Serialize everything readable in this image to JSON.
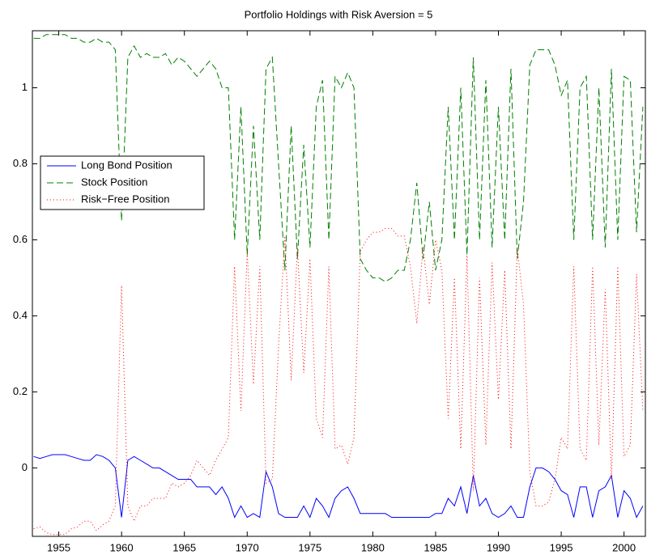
{
  "chart_data": {
    "type": "line",
    "title": "Portfolio Holdings with Risk Aversion = 5",
    "x": [
      1953,
      1953.5,
      1954,
      1954.5,
      1955,
      1955.5,
      1956,
      1956.5,
      1957,
      1957.5,
      1958,
      1958.5,
      1959,
      1959.5,
      1960,
      1960.5,
      1961,
      1961.5,
      1962,
      1962.5,
      1963,
      1963.5,
      1964,
      1964.5,
      1965,
      1965.5,
      1966,
      1966.5,
      1967,
      1967.5,
      1968,
      1968.5,
      1969,
      1969.5,
      1970,
      1970.5,
      1971,
      1971.5,
      1972,
      1972.5,
      1973,
      1973.5,
      1974,
      1974.5,
      1975,
      1975.5,
      1976,
      1976.5,
      1977,
      1977.5,
      1978,
      1978.5,
      1979,
      1979.5,
      1980,
      1980.5,
      1981,
      1981.5,
      1982,
      1982.5,
      1983,
      1983.5,
      1984,
      1984.5,
      1985,
      1985.5,
      1986,
      1986.5,
      1987,
      1987.5,
      1988,
      1988.5,
      1989,
      1989.5,
      1990,
      1990.5,
      1991,
      1991.5,
      1992,
      1992.5,
      1993,
      1993.5,
      1994,
      1994.5,
      1995,
      1995.5,
      1996,
      1996.5,
      1997,
      1997.5,
      1998,
      1998.5,
      1999,
      1999.5,
      2000,
      2000.5,
      2001,
      2001.5
    ],
    "series": [
      {
        "name": "Long Bond Position",
        "color": "#0000ff",
        "dash": "solid",
        "values": [
          0.03,
          0.025,
          0.03,
          0.035,
          0.035,
          0.035,
          0.03,
          0.025,
          0.02,
          0.02,
          0.035,
          0.03,
          0.02,
          0.0,
          -0.13,
          0.02,
          0.03,
          0.02,
          0.01,
          0.0,
          0.0,
          -0.01,
          -0.02,
          -0.03,
          -0.03,
          -0.03,
          -0.05,
          -0.05,
          -0.05,
          -0.07,
          -0.05,
          -0.08,
          -0.13,
          -0.1,
          -0.13,
          -0.12,
          -0.13,
          -0.01,
          -0.05,
          -0.12,
          -0.13,
          -0.13,
          -0.13,
          -0.1,
          -0.13,
          -0.08,
          -0.1,
          -0.13,
          -0.08,
          -0.06,
          -0.05,
          -0.08,
          -0.12,
          -0.12,
          -0.12,
          -0.12,
          -0.12,
          -0.13,
          -0.13,
          -0.13,
          -0.13,
          -0.13,
          -0.13,
          -0.13,
          -0.12,
          -0.12,
          -0.08,
          -0.1,
          -0.05,
          -0.12,
          -0.02,
          -0.1,
          -0.08,
          -0.12,
          -0.13,
          -0.12,
          -0.1,
          -0.13,
          -0.13,
          -0.05,
          0.0,
          0.0,
          -0.01,
          -0.03,
          -0.06,
          -0.07,
          -0.13,
          -0.05,
          -0.05,
          -0.13,
          -0.06,
          -0.05,
          -0.02,
          -0.13,
          -0.06,
          -0.08,
          -0.13,
          -0.1
        ]
      },
      {
        "name": "Stock Position",
        "color": "#007f00",
        "dash": "dashed",
        "values": [
          1.13,
          1.13,
          1.14,
          1.14,
          1.14,
          1.14,
          1.13,
          1.13,
          1.12,
          1.12,
          1.13,
          1.12,
          1.12,
          1.1,
          0.65,
          1.08,
          1.11,
          1.08,
          1.09,
          1.08,
          1.08,
          1.09,
          1.06,
          1.08,
          1.07,
          1.05,
          1.03,
          1.05,
          1.07,
          1.05,
          1.0,
          1.0,
          0.6,
          0.95,
          0.56,
          0.9,
          0.6,
          1.05,
          1.08,
          0.8,
          0.52,
          0.9,
          0.55,
          0.85,
          0.58,
          0.95,
          1.02,
          0.6,
          1.03,
          1.0,
          1.04,
          1.0,
          0.55,
          0.52,
          0.5,
          0.5,
          0.49,
          0.5,
          0.52,
          0.52,
          0.6,
          0.75,
          0.55,
          0.7,
          0.52,
          0.6,
          0.95,
          0.6,
          1.0,
          0.56,
          1.08,
          0.6,
          1.02,
          0.58,
          0.95,
          0.6,
          1.05,
          0.55,
          0.7,
          1.06,
          1.1,
          1.1,
          1.1,
          1.06,
          0.98,
          1.02,
          0.6,
          1.0,
          1.03,
          0.6,
          1.0,
          0.58,
          1.05,
          0.6,
          1.03,
          1.02,
          0.62,
          0.95
        ]
      },
      {
        "name": "Risk−Free Position",
        "color": "#ff0000",
        "dash": "dotted",
        "values": [
          -0.16,
          -0.155,
          -0.17,
          -0.175,
          -0.175,
          -0.175,
          -0.16,
          -0.155,
          -0.14,
          -0.14,
          -0.165,
          -0.15,
          -0.14,
          -0.1,
          0.48,
          -0.1,
          -0.14,
          -0.1,
          -0.1,
          -0.08,
          -0.08,
          -0.08,
          -0.04,
          -0.05,
          -0.04,
          -0.02,
          0.02,
          0.0,
          -0.02,
          0.02,
          0.05,
          0.08,
          0.53,
          0.15,
          0.57,
          0.22,
          0.53,
          -0.04,
          -0.03,
          0.32,
          0.61,
          0.23,
          0.58,
          0.25,
          0.55,
          0.13,
          0.08,
          0.53,
          0.05,
          0.06,
          0.01,
          0.08,
          0.57,
          0.6,
          0.62,
          0.62,
          0.63,
          0.63,
          0.61,
          0.61,
          0.53,
          0.38,
          0.58,
          0.43,
          0.6,
          0.52,
          0.13,
          0.5,
          0.05,
          0.56,
          -0.06,
          0.5,
          0.06,
          0.54,
          0.18,
          0.52,
          0.05,
          0.58,
          0.43,
          -0.01,
          -0.1,
          -0.1,
          -0.09,
          -0.03,
          0.08,
          0.05,
          0.53,
          0.05,
          0.02,
          0.53,
          0.06,
          0.47,
          -0.03,
          0.53,
          0.03,
          0.06,
          0.51,
          0.15
        ]
      }
    ],
    "xlim": [
      1952.9,
      2001.7
    ],
    "ylim": [
      -0.18,
      1.15
    ],
    "xticks": [
      1955,
      1960,
      1965,
      1970,
      1975,
      1980,
      1985,
      1990,
      1995,
      2000
    ],
    "yticks": [
      0,
      0.2,
      0.4,
      0.6,
      0.8,
      1
    ],
    "legend": "center left"
  }
}
